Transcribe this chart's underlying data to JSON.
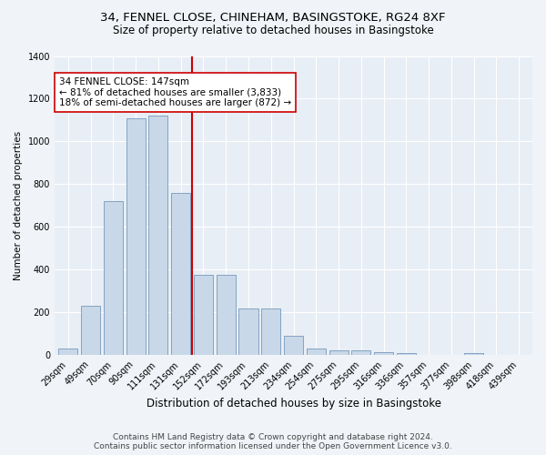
{
  "title1": "34, FENNEL CLOSE, CHINEHAM, BASINGSTOKE, RG24 8XF",
  "title2": "Size of property relative to detached houses in Basingstoke",
  "xlabel": "Distribution of detached houses by size in Basingstoke",
  "ylabel": "Number of detached properties",
  "categories": [
    "29sqm",
    "49sqm",
    "70sqm",
    "90sqm",
    "111sqm",
    "131sqm",
    "152sqm",
    "172sqm",
    "193sqm",
    "213sqm",
    "234sqm",
    "254sqm",
    "275sqm",
    "295sqm",
    "316sqm",
    "336sqm",
    "357sqm",
    "377sqm",
    "398sqm",
    "418sqm",
    "439sqm"
  ],
  "values": [
    30,
    230,
    720,
    1110,
    1120,
    760,
    375,
    375,
    220,
    220,
    90,
    30,
    20,
    20,
    15,
    10,
    0,
    0,
    10,
    0,
    0
  ],
  "bar_color": "#c8d8e8",
  "bar_edge_color": "#7799bb",
  "vline_x_index": 6,
  "vline_color": "#cc0000",
  "annotation_text": "34 FENNEL CLOSE: 147sqm\n← 81% of detached houses are smaller (3,833)\n18% of semi-detached houses are larger (872) →",
  "annotation_box_color": "#ffffff",
  "annotation_box_edge": "#cc0000",
  "annotation_fontsize": 7.5,
  "ylim": [
    0,
    1400
  ],
  "yticks": [
    0,
    200,
    400,
    600,
    800,
    1000,
    1200,
    1400
  ],
  "footer1": "Contains HM Land Registry data © Crown copyright and database right 2024.",
  "footer2": "Contains public sector information licensed under the Open Government Licence v3.0.",
  "bg_color": "#f0f4f8",
  "plot_bg_color": "#e8eef5",
  "grid_color": "#ffffff",
  "title1_fontsize": 9.5,
  "title2_fontsize": 8.5,
  "xlabel_fontsize": 8.5,
  "ylabel_fontsize": 7.5,
  "tick_fontsize": 7,
  "footer_fontsize": 6.5
}
